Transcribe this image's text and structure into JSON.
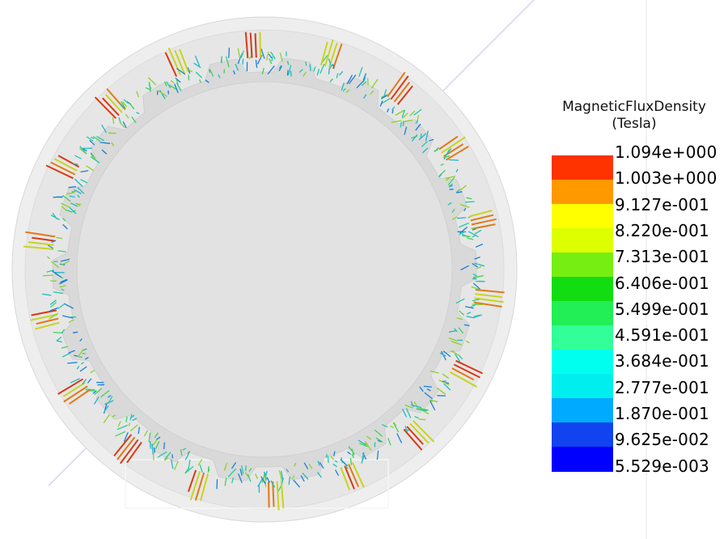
{
  "legend": {
    "title": "MagneticFluxDensity",
    "unit": "(Tesla)",
    "colors": [
      "#ff3300",
      "#ff9900",
      "#ffff00",
      "#ddff00",
      "#77ee11",
      "#11dd11",
      "#22ee55",
      "#33ff99",
      "#00ffee",
      "#00eeee",
      "#00aaff",
      "#1144ee",
      "#0000ff"
    ],
    "ticks": [
      "1.094e+000",
      "1.003e+000",
      "9.127e-001",
      "8.220e-001",
      "7.313e-001",
      "6.406e-001",
      "5.499e-001",
      "4.591e-001",
      "3.684e-001",
      "2.777e-001",
      "1.870e-001",
      "9.625e-002",
      "5.529e-003"
    ]
  },
  "model": {
    "outer_fill": "#e6e6e6",
    "inner_fill": "#e0e0e0",
    "teeth_count": 18
  }
}
